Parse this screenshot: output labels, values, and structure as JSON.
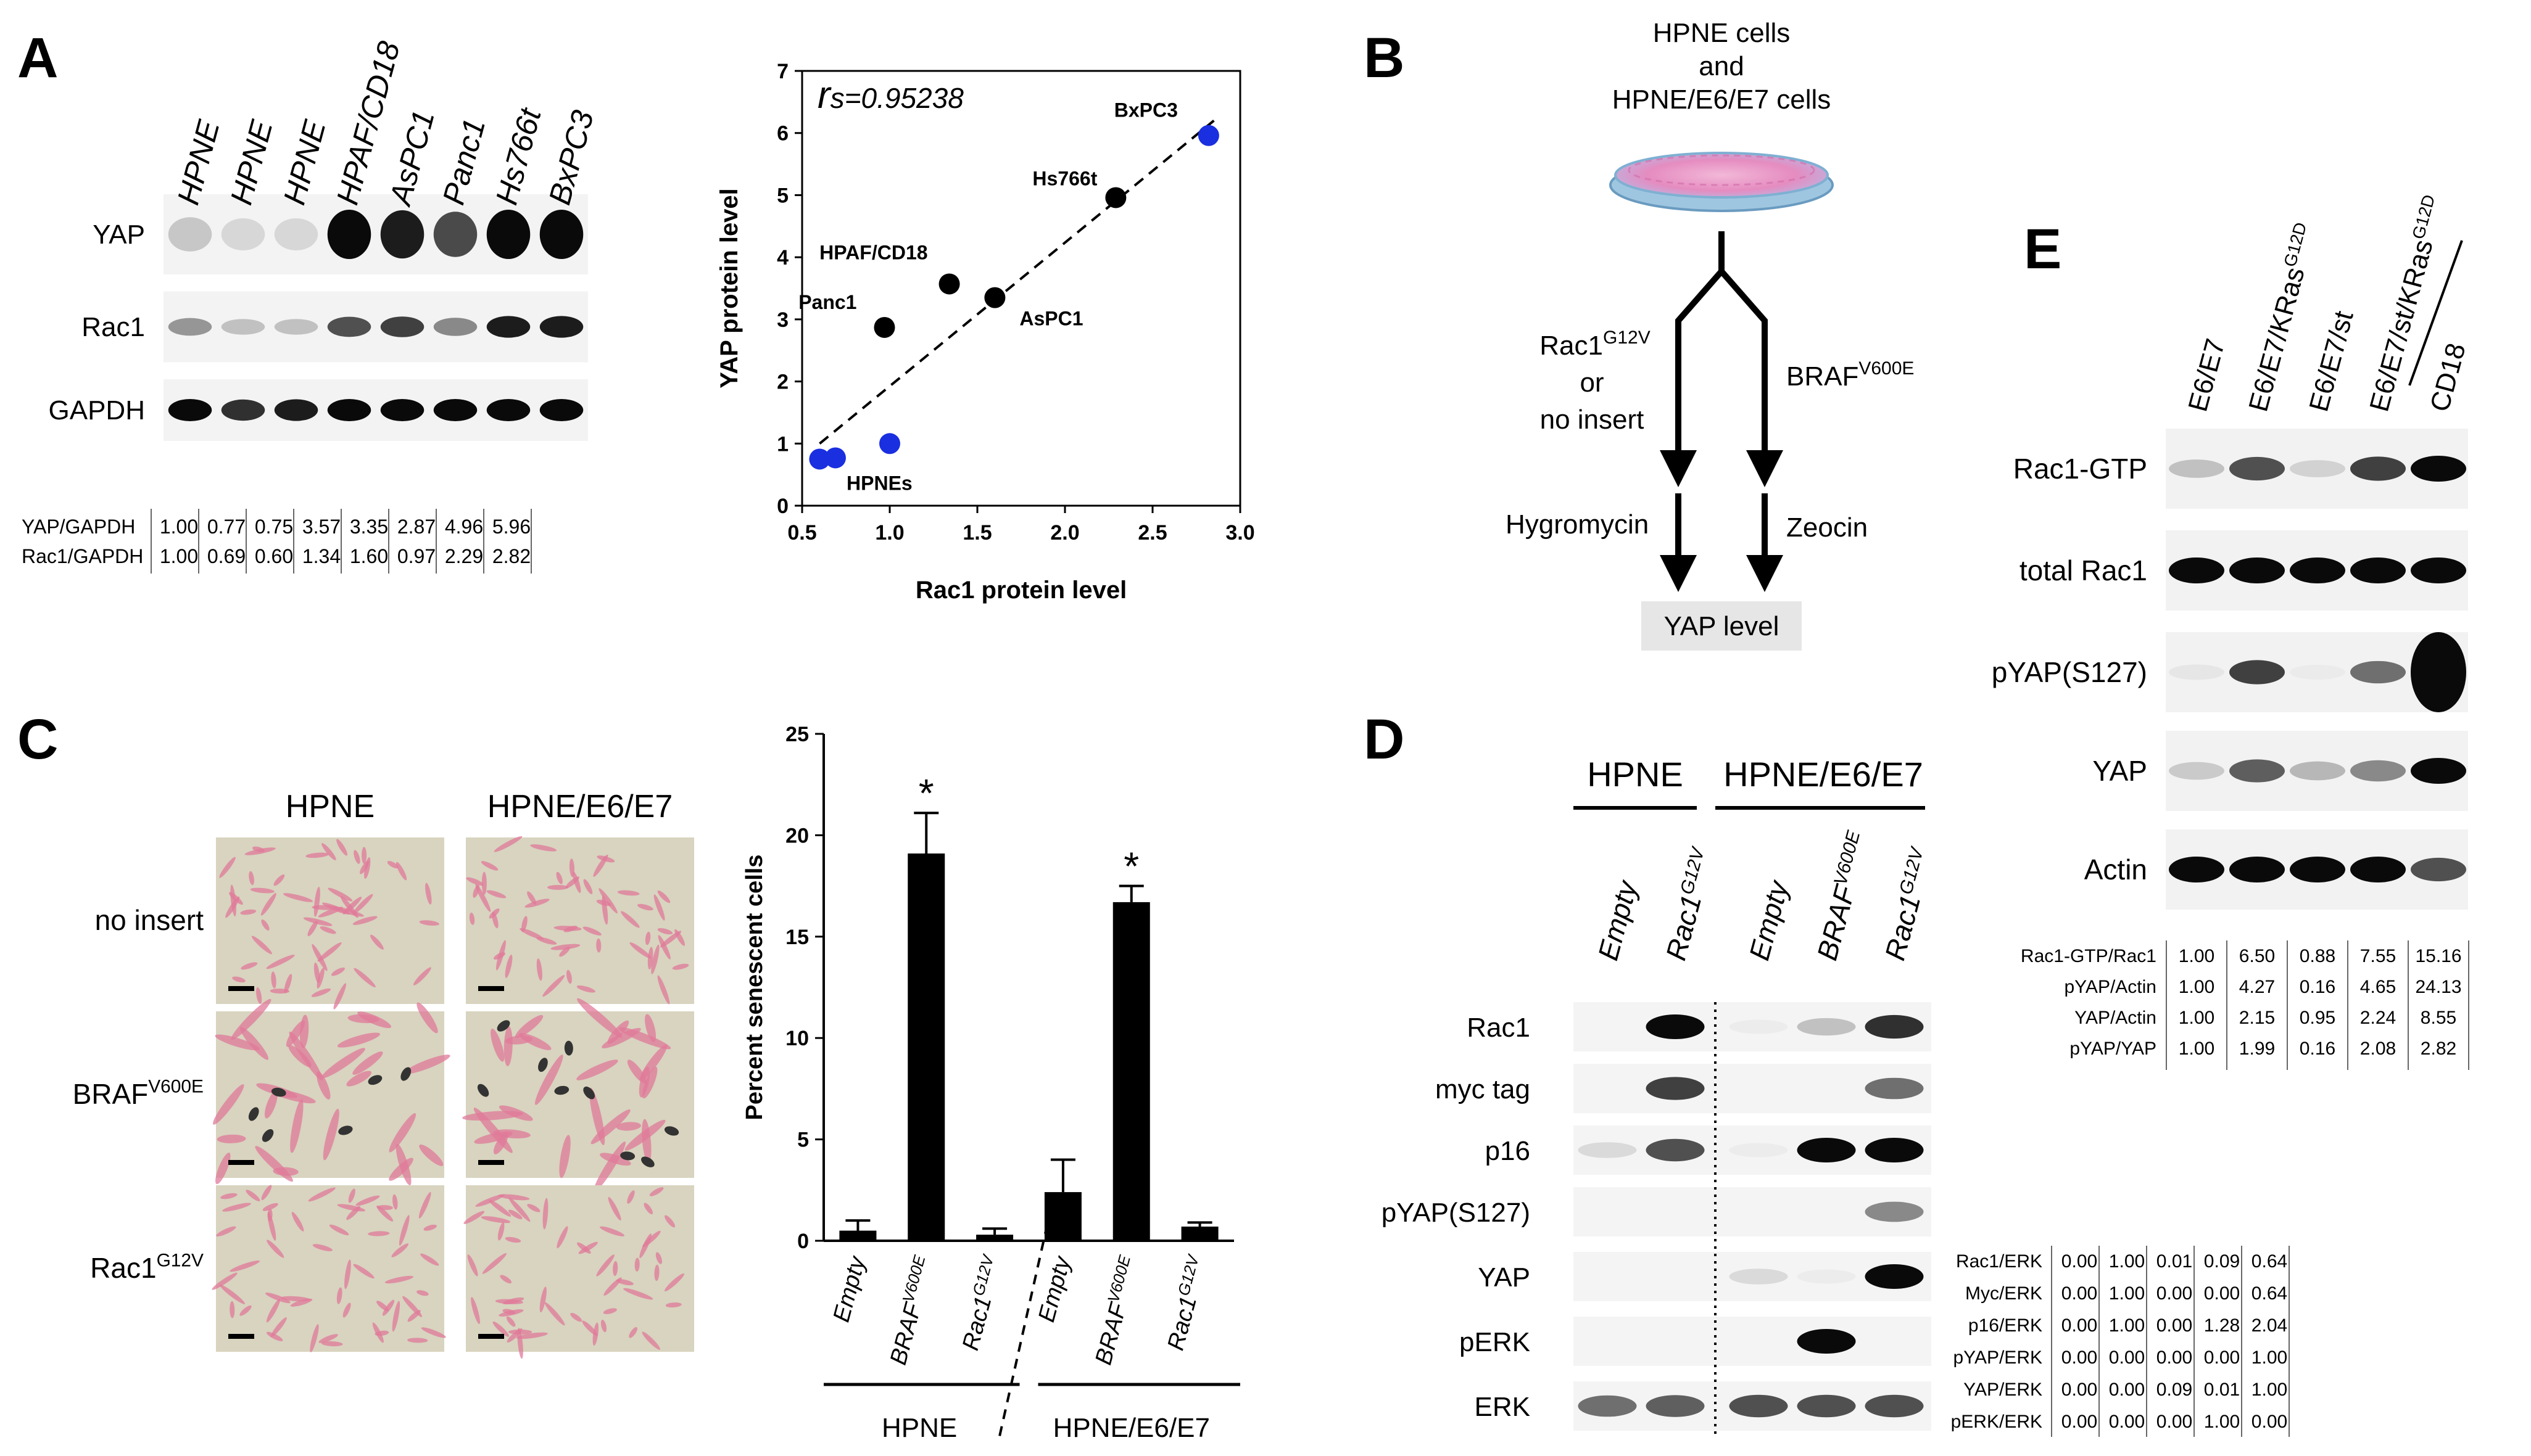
{
  "panels": {
    "A": "A",
    "B": "B",
    "C": "C",
    "D": "D",
    "E": "E"
  },
  "blotA": {
    "lanes": [
      "HPNE",
      "HPNE",
      "HPNE",
      "HPAF/CD18",
      "AsPC1",
      "Panc1",
      "Hs766t",
      "BxPC3"
    ],
    "rows": [
      "YAP",
      "Rac1",
      "GAPDH"
    ],
    "intensity": {
      "YAP": [
        0.32,
        0.22,
        0.22,
        1.0,
        0.95,
        0.82,
        1.0,
        1.0
      ],
      "Rac1": [
        0.55,
        0.35,
        0.35,
        0.8,
        0.85,
        0.6,
        0.95,
        0.95
      ],
      "GAPDH": [
        1.0,
        0.9,
        0.95,
        1.0,
        1.0,
        1.0,
        1.0,
        1.0
      ]
    },
    "quant": [
      {
        "label": "YAP/GAPDH",
        "values": [
          "1.00",
          "0.77",
          "0.75",
          "3.57",
          "3.35",
          "2.87",
          "4.96",
          "5.96"
        ]
      },
      {
        "label": "Rac1/GAPDH",
        "values": [
          "1.00",
          "0.69",
          "0.60",
          "1.34",
          "1.60",
          "0.97",
          "2.29",
          "2.82"
        ]
      }
    ]
  },
  "chart_data": [
    {
      "type": "scatter",
      "title": "",
      "annotation_prefix": "r",
      "annotation": "s=0.95238",
      "xlabel": "Rac1 protein level",
      "ylabel": "YAP protein level",
      "xlim": [
        0.5,
        3.0
      ],
      "ylim": [
        0,
        7
      ],
      "xticks": [
        "0.5",
        "1.0",
        "1.5",
        "2.0",
        "2.5",
        "3.0"
      ],
      "yticks": [
        "0",
        "1",
        "2",
        "3",
        "4",
        "5",
        "6",
        "7"
      ],
      "fit_line": [
        [
          0.6,
          1.0
        ],
        [
          2.85,
          6.2
        ]
      ],
      "points": [
        {
          "label": "",
          "x": 0.6,
          "y": 0.75,
          "color": "#1a2fe0"
        },
        {
          "label": "",
          "x": 0.69,
          "y": 0.77,
          "color": "#1a2fe0"
        },
        {
          "label": "HPNEs",
          "x": 1.0,
          "y": 1.0,
          "color": "#1a2fe0"
        },
        {
          "label": "Panc1",
          "x": 0.97,
          "y": 2.87,
          "color": "#000000"
        },
        {
          "label": "HPAF/CD18",
          "x": 1.34,
          "y": 3.57,
          "color": "#000000"
        },
        {
          "label": "AsPC1",
          "x": 1.6,
          "y": 3.35,
          "color": "#000000"
        },
        {
          "label": "Hs766t",
          "x": 2.29,
          "y": 4.96,
          "color": "#000000"
        },
        {
          "label": "BxPC3",
          "x": 2.82,
          "y": 5.96,
          "color": "#1a2fe0"
        }
      ]
    },
    {
      "type": "bar",
      "ylabel": "Percent senescent cells",
      "ylim": [
        0,
        25
      ],
      "yticks": [
        "0",
        "5",
        "10",
        "15",
        "20",
        "25"
      ],
      "categories": [
        "Empty",
        "BRAF",
        "Rac1",
        "Empty",
        "BRAF",
        "Rac1"
      ],
      "category_sups": [
        "",
        "V600E",
        "G12V",
        "",
        "V600E",
        "G12V"
      ],
      "values": [
        0.5,
        19.1,
        0.3,
        2.4,
        16.7,
        0.7
      ],
      "errors": [
        0.5,
        2.0,
        0.3,
        1.6,
        0.8,
        0.2
      ],
      "significant": [
        "",
        "*",
        "",
        "",
        "*",
        ""
      ],
      "groups": [
        "HPNE",
        "HPNE/E6/E7"
      ]
    }
  ],
  "panelB": {
    "top_line1": "HPNE cells",
    "top_line2": "and",
    "top_line3": "HPNE/E6/E7 cells",
    "left_main": "Rac1",
    "left_sup": "G12V",
    "left_or": "or",
    "left_noinsert": "no insert",
    "right_main": "BRAF",
    "right_sup": "V600E",
    "hygro": "Hygromycin",
    "zeocin": "Zeocin",
    "result": "YAP level"
  },
  "panelC": {
    "cols": [
      "HPNE",
      "HPNE/E6/E7"
    ],
    "rows": [
      {
        "main": "no insert",
        "sup": ""
      },
      {
        "main": "BRAF",
        "sup": "V600E"
      },
      {
        "main": "Rac1",
        "sup": "G12V"
      }
    ]
  },
  "panelD": {
    "groups": [
      "HPNE",
      "HPNE/E6/E7"
    ],
    "lanes": [
      {
        "main": "Empty",
        "sup": ""
      },
      {
        "main": "Rac1",
        "sup": "G12V"
      },
      {
        "main": "Empty",
        "sup": ""
      },
      {
        "main": "BRAF",
        "sup": "V600E"
      },
      {
        "main": "Rac1",
        "sup": "G12V"
      }
    ],
    "rows": [
      "Rac1",
      "myc tag",
      "p16",
      "pYAP(S127)",
      "YAP",
      "pERK",
      "ERK"
    ],
    "intensity": {
      "Rac1": [
        0.0,
        1.0,
        0.05,
        0.35,
        0.9
      ],
      "myc tag": [
        0.0,
        0.85,
        0.0,
        0.0,
        0.7
      ],
      "p16": [
        0.2,
        0.8,
        0.05,
        1.0,
        1.0
      ],
      "pYAP(S127)": [
        0.0,
        0.0,
        0.0,
        0.0,
        0.6
      ],
      "YAP": [
        0.0,
        0.0,
        0.2,
        0.05,
        1.0
      ],
      "pERK": [
        0.0,
        0.0,
        0.0,
        1.0,
        0.0
      ],
      "ERK": [
        0.7,
        0.75,
        0.8,
        0.8,
        0.8
      ]
    },
    "quant": [
      {
        "label": "Rac1/ERK",
        "values": [
          "0.00",
          "1.00",
          "0.01",
          "0.09",
          "0.64"
        ]
      },
      {
        "label": "Myc/ERK",
        "values": [
          "0.00",
          "1.00",
          "0.00",
          "0.00",
          "0.64"
        ]
      },
      {
        "label": "p16/ERK",
        "values": [
          "0.00",
          "1.00",
          "0.00",
          "1.28",
          "2.04"
        ]
      },
      {
        "label": "pYAP/ERK",
        "values": [
          "0.00",
          "0.00",
          "0.00",
          "0.00",
          "1.00"
        ]
      },
      {
        "label": "YAP/ERK",
        "values": [
          "0.00",
          "0.00",
          "0.09",
          "0.01",
          "1.00"
        ]
      },
      {
        "label": "pERK/ERK",
        "values": [
          "0.00",
          "0.00",
          "0.00",
          "1.00",
          "0.00"
        ]
      }
    ]
  },
  "panelE": {
    "lanes": [
      {
        "main": "E6/E7",
        "sup": ""
      },
      {
        "main": "E6/E7/KRas",
        "sup": "G12D"
      },
      {
        "main": "E6/E7/st",
        "sup": ""
      },
      {
        "main": "E6/E7/st/KRas",
        "sup": "G12D"
      },
      {
        "main": "CD18",
        "sup": ""
      }
    ],
    "rows": [
      "Rac1-GTP",
      "total Rac1",
      "pYAP(S127)",
      "YAP",
      "Actin"
    ],
    "intensity": {
      "Rac1-GTP": [
        0.35,
        0.8,
        0.25,
        0.85,
        1.0
      ],
      "total Rac1": [
        1.0,
        1.0,
        1.0,
        1.0,
        1.0
      ],
      "pYAP(S127)": [
        0.1,
        0.85,
        0.05,
        0.7,
        1.0
      ],
      "YAP": [
        0.3,
        0.75,
        0.4,
        0.6,
        1.0
      ],
      "Actin": [
        1.0,
        1.0,
        1.0,
        1.0,
        0.8
      ]
    },
    "quant": [
      {
        "label": "Rac1-GTP/Rac1",
        "values": [
          "1.00",
          "6.50",
          "0.88",
          "7.55",
          "15.16"
        ]
      },
      {
        "label": "pYAP/Actin",
        "values": [
          "1.00",
          "4.27",
          "0.16",
          "4.65",
          "24.13"
        ]
      },
      {
        "label": "YAP/Actin",
        "values": [
          "1.00",
          "2.15",
          "0.95",
          "2.24",
          "8.55"
        ]
      },
      {
        "label": "pYAP/YAP",
        "values": [
          "1.00",
          "1.99",
          "0.16",
          "2.08",
          "2.82"
        ]
      }
    ]
  }
}
